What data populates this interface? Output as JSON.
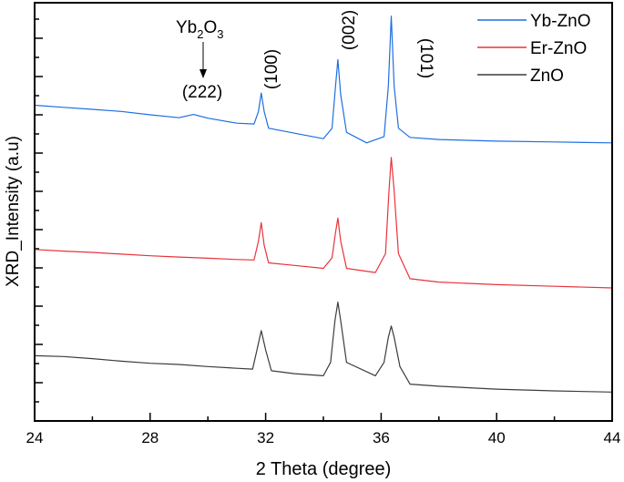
{
  "chart_data": {
    "type": "line",
    "title": "",
    "xlabel": "2 Theta (degree)",
    "ylabel": "XRD_Intensity (a.u)",
    "xlim": [
      24,
      44
    ],
    "ylim": [
      0,
      100
    ],
    "xticks": [
      24,
      28,
      32,
      36,
      40,
      44
    ],
    "xtick_labels": [
      "24",
      "28",
      "32",
      "36",
      "40",
      "44"
    ],
    "grid": false,
    "legend_position": "top-right",
    "series": [
      {
        "name": "Yb-ZnO",
        "color": "#1f6fe0",
        "points": [
          [
            24,
            75.5
          ],
          [
            25,
            75
          ],
          [
            26,
            74.5
          ],
          [
            27,
            74
          ],
          [
            28,
            73.2
          ],
          [
            29,
            72.5
          ],
          [
            29.5,
            73.3
          ],
          [
            30,
            72.4
          ],
          [
            31,
            71.2
          ],
          [
            31.6,
            71
          ],
          [
            31.75,
            74
          ],
          [
            31.85,
            78.4
          ],
          [
            31.95,
            74
          ],
          [
            32.1,
            70
          ],
          [
            33,
            68.8
          ],
          [
            34,
            67.5
          ],
          [
            34.3,
            70
          ],
          [
            34.42,
            80
          ],
          [
            34.5,
            86.4
          ],
          [
            34.6,
            78
          ],
          [
            34.8,
            69
          ],
          [
            35.5,
            66.5
          ],
          [
            36.1,
            68
          ],
          [
            36.25,
            80
          ],
          [
            36.35,
            96.8
          ],
          [
            36.45,
            80
          ],
          [
            36.6,
            70
          ],
          [
            37,
            67.8
          ],
          [
            38,
            67.3
          ],
          [
            40,
            66.9
          ],
          [
            42,
            66.7
          ],
          [
            44,
            66.5
          ]
        ]
      },
      {
        "name": "Er-ZnO",
        "color": "#e8333b",
        "points": [
          [
            24,
            41
          ],
          [
            25,
            40.6
          ],
          [
            26,
            40.3
          ],
          [
            27,
            39.9
          ],
          [
            28,
            39.5
          ],
          [
            29,
            39.2
          ],
          [
            30,
            38.9
          ],
          [
            31,
            38.6
          ],
          [
            31.6,
            38.5
          ],
          [
            31.75,
            43
          ],
          [
            31.85,
            47.4
          ],
          [
            31.95,
            42
          ],
          [
            32.1,
            37.8
          ],
          [
            33,
            37.2
          ],
          [
            34,
            36.5
          ],
          [
            34.3,
            39
          ],
          [
            34.42,
            45
          ],
          [
            34.5,
            48.5
          ],
          [
            34.6,
            43
          ],
          [
            34.8,
            36.5
          ],
          [
            35.8,
            35.5
          ],
          [
            36.15,
            40
          ],
          [
            36.27,
            55
          ],
          [
            36.35,
            63
          ],
          [
            36.45,
            55
          ],
          [
            36.6,
            40
          ],
          [
            37,
            34
          ],
          [
            38,
            33.2
          ],
          [
            40,
            32.6
          ],
          [
            42,
            32.2
          ],
          [
            44,
            31.8
          ]
        ]
      },
      {
        "name": "ZnO",
        "color": "#3c3c3c",
        "points": [
          [
            24,
            15.6
          ],
          [
            25,
            15.4
          ],
          [
            26,
            14.9
          ],
          [
            27,
            14.3
          ],
          [
            28,
            13.8
          ],
          [
            29,
            13.5
          ],
          [
            30,
            13
          ],
          [
            31,
            12.6
          ],
          [
            31.55,
            12.4
          ],
          [
            31.7,
            17
          ],
          [
            31.85,
            21.6
          ],
          [
            32,
            17
          ],
          [
            32.2,
            12
          ],
          [
            33,
            11.3
          ],
          [
            34,
            10.8
          ],
          [
            34.25,
            14
          ],
          [
            34.4,
            24
          ],
          [
            34.5,
            28.4
          ],
          [
            34.6,
            24
          ],
          [
            34.8,
            14
          ],
          [
            35.8,
            10.8
          ],
          [
            36.1,
            14
          ],
          [
            36.25,
            20
          ],
          [
            36.35,
            22.7
          ],
          [
            36.45,
            20
          ],
          [
            36.65,
            13
          ],
          [
            37,
            8.8
          ],
          [
            38,
            8.3
          ],
          [
            40,
            7.6
          ],
          [
            42,
            7.2
          ],
          [
            44,
            6.9
          ]
        ]
      }
    ],
    "annotations": {
      "phase_main": "Yb",
      "phase_sub1": "2",
      "phase_mid": "O",
      "phase_sub2": "3",
      "phase_peak": "(222)",
      "peak_100": "(100)",
      "peak_002": "(002)",
      "peak_101": "(101)"
    }
  }
}
